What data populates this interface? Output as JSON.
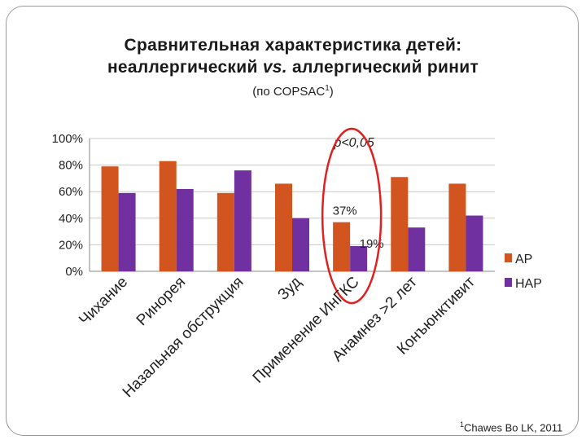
{
  "slide": {
    "title_line1": "Сравнительная характеристика  детей:",
    "title_line2_a": "неаллергический ",
    "title_line2_vs": "vs.",
    "title_line2_b": " аллергический ринит",
    "subtitle_main": "(по COPSAC",
    "subtitle_sup": "1",
    "subtitle_end": ")",
    "footnote_sup": "1",
    "footnote_text": "Chawes Bo LK, 2011"
  },
  "chart_data": {
    "type": "bar",
    "categories": [
      "Чихание",
      "Ринорея",
      "Назальная обструкция",
      "Зуд",
      "Применение ИнГКС",
      "Анамнез >2 лет",
      "Конъюнктивит"
    ],
    "series": [
      {
        "name": "АР",
        "color": "#d2541e",
        "values": [
          79,
          83,
          59,
          66,
          37,
          71,
          66
        ]
      },
      {
        "name": "НАР",
        "color": "#7030a0",
        "values": [
          59,
          62,
          76,
          40,
          19,
          33,
          42
        ]
      }
    ],
    "y_ticks": [
      "0%",
      "20%",
      "40%",
      "60%",
      "80%",
      "100%"
    ],
    "ylim": [
      0,
      100
    ],
    "data_labels": [
      {
        "category_index": 4,
        "series_index": 0,
        "text": "37%"
      },
      {
        "category_index": 4,
        "series_index": 1,
        "text": "19%"
      }
    ],
    "annotation": "p<0,05",
    "highlight_category_index": 4,
    "highlight_color": "#e02020",
    "grid": true,
    "legend_position": "right"
  }
}
